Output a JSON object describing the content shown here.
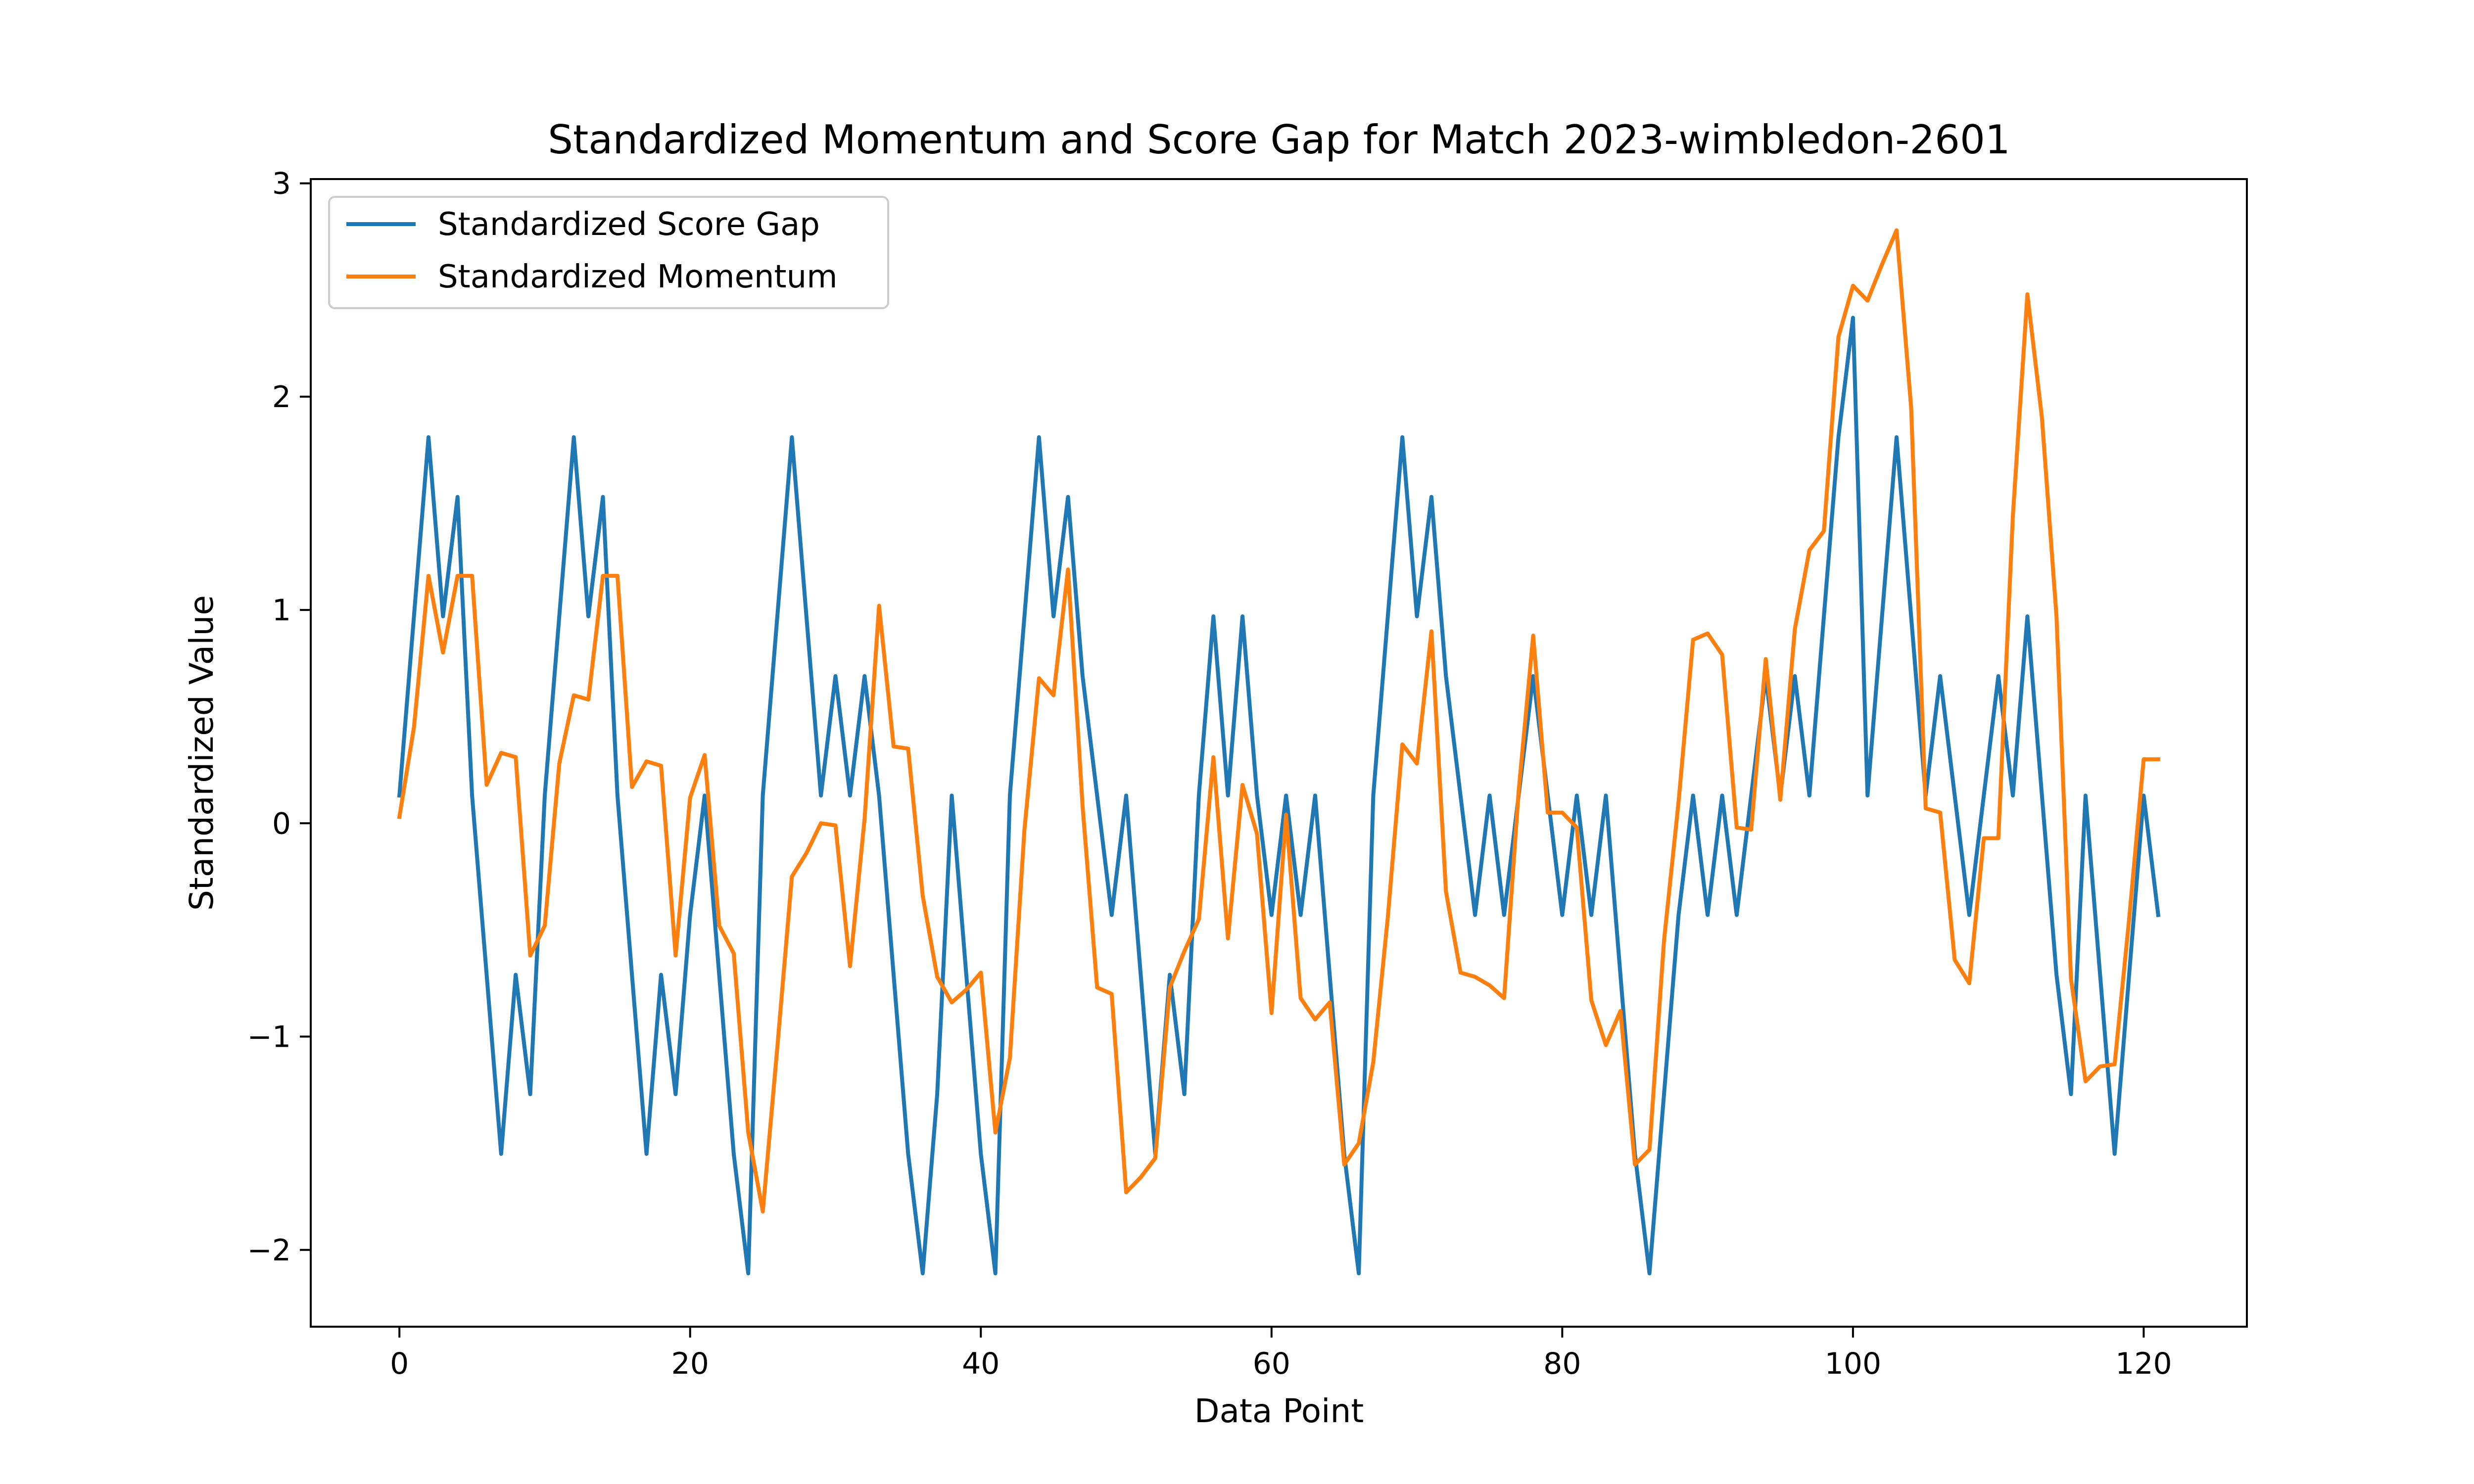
{
  "chart_data": {
    "type": "line",
    "title": "Standardized Momentum and Score Gap for Match 2023-wimbledon-2601",
    "xlabel": "Data Point",
    "ylabel": "Standardized Value",
    "xlim": [
      -6.1,
      127.1
    ],
    "ylim": [
      -2.36,
      3.02
    ],
    "xticks": [
      0,
      20,
      40,
      60,
      80,
      100,
      120
    ],
    "yticks": [
      -2,
      -1,
      0,
      1,
      2,
      3
    ],
    "grid": false,
    "legend_position": "top-left",
    "series": [
      {
        "name": "Standardized Score Gap",
        "color": "#1f77b4",
        "x": [
          0,
          1,
          2,
          3,
          4,
          5,
          6,
          7,
          8,
          9,
          10,
          11,
          12,
          13,
          14,
          15,
          16,
          17,
          18,
          19,
          20,
          21,
          22,
          23,
          24,
          25,
          26,
          27,
          28,
          29,
          30,
          31,
          32,
          33,
          34,
          35,
          36,
          37,
          38,
          39,
          40,
          41,
          42,
          43,
          44,
          45,
          46,
          47,
          48,
          49,
          50,
          51,
          52,
          53,
          54,
          55,
          56,
          57,
          58,
          59,
          60,
          61,
          62,
          63,
          64,
          65,
          66,
          67,
          68,
          69,
          70,
          71,
          72,
          73,
          74,
          75,
          76,
          77,
          78,
          79,
          80,
          81,
          82,
          83,
          84,
          85,
          86,
          87,
          88,
          89,
          90,
          91,
          92,
          93,
          94,
          95,
          96,
          97,
          98,
          99,
          100,
          101,
          102,
          103,
          104,
          105,
          106,
          107,
          108,
          109,
          110,
          111,
          112,
          113,
          114,
          115,
          116,
          117,
          118,
          119,
          120,
          121
        ],
        "values": [
          0.13,
          0.97,
          1.81,
          0.97,
          1.53,
          0.13,
          -0.71,
          -1.55,
          -0.71,
          -1.27,
          0.13,
          0.97,
          1.81,
          0.97,
          1.53,
          0.13,
          -0.71,
          -1.55,
          -0.71,
          -1.27,
          -0.43,
          0.13,
          -0.71,
          -1.55,
          -2.11,
          0.13,
          0.97,
          1.81,
          0.97,
          0.13,
          0.69,
          0.13,
          0.69,
          0.13,
          -0.71,
          -1.55,
          -2.11,
          -1.27,
          0.13,
          -0.71,
          -1.55,
          -2.11,
          0.13,
          0.97,
          1.81,
          0.97,
          1.53,
          0.69,
          0.13,
          -0.43,
          0.13,
          -0.71,
          -1.55,
          -0.71,
          -1.27,
          0.13,
          0.97,
          0.13,
          0.97,
          0.13,
          -0.43,
          0.13,
          -0.43,
          0.13,
          -0.71,
          -1.55,
          -2.11,
          0.13,
          0.97,
          1.81,
          0.97,
          1.53,
          0.69,
          0.13,
          -0.43,
          0.13,
          -0.43,
          0.13,
          0.69,
          0.13,
          -0.43,
          0.13,
          -0.43,
          0.13,
          -0.71,
          -1.55,
          -2.11,
          -1.27,
          -0.43,
          0.13,
          -0.43,
          0.13,
          -0.43,
          0.13,
          0.69,
          0.13,
          0.69,
          0.13,
          0.97,
          1.81,
          2.37,
          0.13,
          0.97,
          1.81,
          0.97,
          0.13,
          0.69,
          0.13,
          -0.43,
          0.13,
          0.69,
          0.13,
          0.97,
          0.13,
          -0.71,
          -1.27,
          0.13,
          -0.71,
          -1.55,
          -0.71,
          0.13,
          -0.43
        ]
      },
      {
        "name": "Standardized Momentum",
        "color": "#ff7f0e",
        "x": [
          0,
          1,
          2,
          3,
          4,
          5,
          6,
          7,
          8,
          9,
          10,
          11,
          12,
          13,
          14,
          15,
          16,
          17,
          18,
          19,
          20,
          21,
          22,
          23,
          24,
          25,
          26,
          27,
          28,
          29,
          30,
          31,
          32,
          33,
          34,
          35,
          36,
          37,
          38,
          39,
          40,
          41,
          42,
          43,
          44,
          45,
          46,
          47,
          48,
          49,
          50,
          51,
          52,
          53,
          54,
          55,
          56,
          57,
          58,
          59,
          60,
          61,
          62,
          63,
          64,
          65,
          66,
          67,
          68,
          69,
          70,
          71,
          72,
          73,
          74,
          75,
          76,
          77,
          78,
          79,
          80,
          81,
          82,
          83,
          84,
          85,
          86,
          87,
          88,
          89,
          90,
          91,
          92,
          93,
          94,
          95,
          96,
          97,
          98,
          99,
          100,
          101,
          102,
          103,
          104,
          105,
          106,
          107,
          108,
          109,
          110,
          111,
          112,
          113,
          114,
          115,
          116,
          117,
          118,
          119,
          120,
          121
        ],
        "values": [
          0.03,
          0.45,
          1.16,
          0.8,
          1.16,
          1.16,
          0.18,
          0.33,
          0.31,
          -0.62,
          -0.48,
          0.28,
          0.6,
          0.58,
          1.16,
          1.16,
          0.17,
          0.29,
          0.27,
          -0.62,
          0.12,
          0.32,
          -0.48,
          -0.61,
          -1.45,
          -1.82,
          -1.05,
          -0.25,
          -0.14,
          0.0,
          -0.01,
          -0.67,
          0.02,
          1.02,
          0.36,
          0.35,
          -0.34,
          -0.72,
          -0.84,
          -0.78,
          -0.7,
          -1.45,
          -1.1,
          -0.03,
          0.68,
          0.6,
          1.19,
          0.08,
          -0.77,
          -0.8,
          -1.73,
          -1.66,
          -1.57,
          -0.77,
          -0.6,
          -0.45,
          0.31,
          -0.54,
          0.18,
          -0.05,
          -0.89,
          0.04,
          -0.82,
          -0.92,
          -0.84,
          -1.6,
          -1.5,
          -1.12,
          -0.44,
          0.37,
          0.28,
          0.9,
          -0.32,
          -0.7,
          -0.72,
          -0.76,
          -0.82,
          0.15,
          0.88,
          0.05,
          0.05,
          -0.02,
          -0.83,
          -1.04,
          -0.88,
          -1.6,
          -1.53,
          -0.55,
          0.1,
          0.86,
          0.89,
          0.79,
          -0.02,
          -0.03,
          0.77,
          0.11,
          0.91,
          1.28,
          1.37,
          2.28,
          2.52,
          2.45,
          2.62,
          2.78,
          1.95,
          0.07,
          0.05,
          -0.64,
          -0.75,
          -0.07,
          -0.07,
          1.44,
          2.48,
          1.9,
          0.97,
          -0.73,
          -1.21,
          -1.14,
          -1.13,
          -0.45,
          0.3,
          0.3
        ]
      }
    ]
  }
}
